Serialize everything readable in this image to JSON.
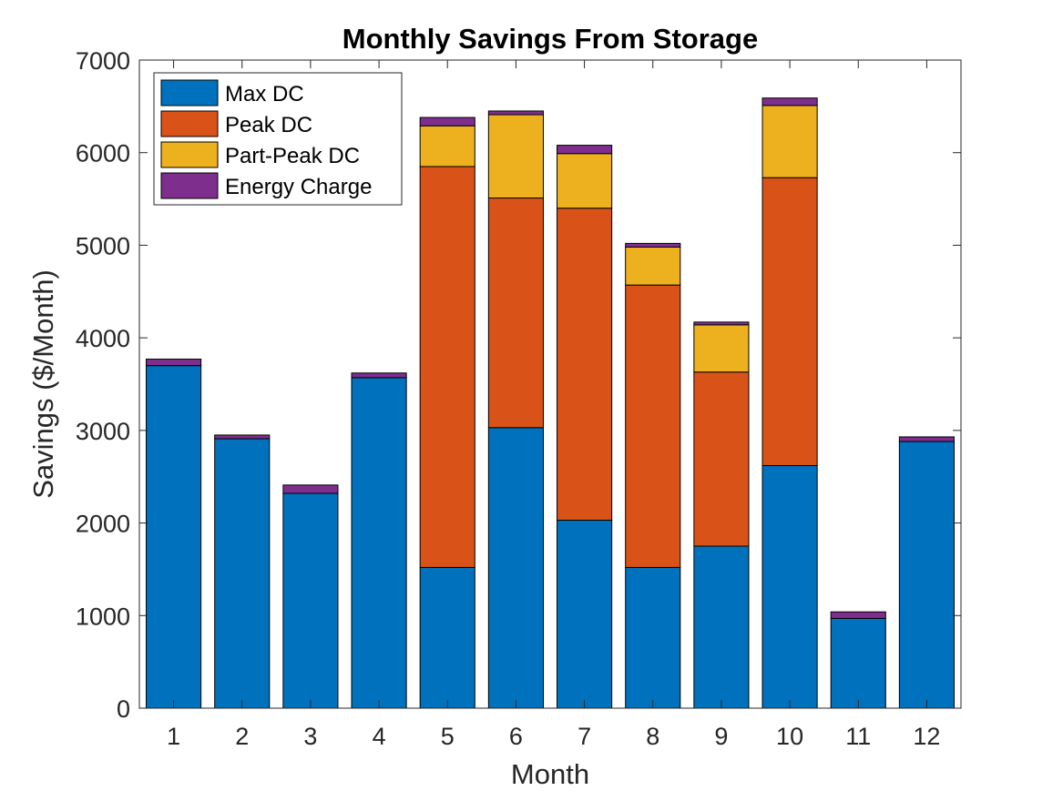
{
  "chart_data": {
    "type": "bar",
    "stacked": true,
    "title": "Monthly Savings From Storage",
    "xlabel": "Month",
    "ylabel": "Savings ($/Month)",
    "ylim": [
      0,
      7000
    ],
    "yticks": [
      0,
      1000,
      2000,
      3000,
      4000,
      5000,
      6000,
      7000
    ],
    "categories": [
      "1",
      "2",
      "3",
      "4",
      "5",
      "6",
      "7",
      "8",
      "9",
      "10",
      "11",
      "12"
    ],
    "legend_position": "top-left",
    "grid": false,
    "series": [
      {
        "name": "Max DC",
        "color": "#0072BD",
        "values": [
          3700,
          2910,
          2320,
          3570,
          1520,
          3030,
          2030,
          1520,
          1750,
          2620,
          970,
          2880
        ]
      },
      {
        "name": "Peak DC",
        "color": "#D95319",
        "values": [
          0,
          0,
          0,
          0,
          4330,
          2480,
          3370,
          3050,
          1880,
          3110,
          0,
          0
        ]
      },
      {
        "name": "Part-Peak DC",
        "color": "#EDB120",
        "values": [
          0,
          0,
          0,
          0,
          440,
          900,
          590,
          410,
          510,
          780,
          0,
          0
        ]
      },
      {
        "name": "Energy Charge",
        "color": "#7E2F8E",
        "values": [
          70,
          40,
          90,
          50,
          90,
          40,
          90,
          40,
          30,
          80,
          70,
          50
        ]
      }
    ]
  }
}
